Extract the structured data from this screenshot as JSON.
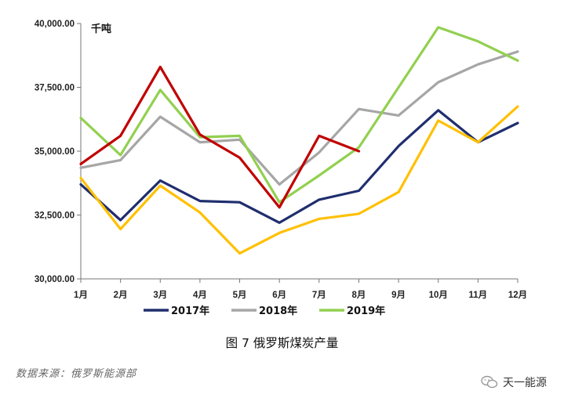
{
  "chart_data": {
    "type": "line",
    "title": "图 7  俄罗斯煤炭产量",
    "unit_label": "千吨",
    "categories": [
      "1月",
      "2月",
      "3月",
      "4月",
      "5月",
      "6月",
      "7月",
      "8月",
      "9月",
      "10月",
      "11月",
      "12月"
    ],
    "y_ticks": [
      "30,000.00",
      "32,500.00",
      "35,000.00",
      "37,500.00",
      "40,000.00"
    ],
    "ylim": [
      30000,
      40000
    ],
    "series": [
      {
        "name": "2017年",
        "color": "#1f2e6e",
        "in_legend": true,
        "values": [
          33700,
          32300,
          33850,
          33050,
          33000,
          32200,
          33100,
          33450,
          35200,
          36600,
          35350,
          36100
        ]
      },
      {
        "name": "2018年",
        "color": "#a6a6a6",
        "in_legend": true,
        "values": [
          34350,
          34650,
          36350,
          35350,
          35450,
          33700,
          34950,
          36650,
          36400,
          37700,
          38400,
          38900
        ]
      },
      {
        "name": "2019年",
        "color": "#92d050",
        "in_legend": true,
        "values": [
          36300,
          34850,
          37400,
          35550,
          35600,
          33000,
          34050,
          35150,
          37500,
          39850,
          39300,
          38550
        ]
      },
      {
        "name": "",
        "color": "#ffc000",
        "in_legend": false,
        "values": [
          33950,
          31950,
          33650,
          32600,
          31000,
          31800,
          32350,
          32550,
          33400,
          36200,
          35350,
          36750
        ]
      },
      {
        "name": "",
        "color": "#c00000",
        "in_legend": false,
        "values": [
          34500,
          35600,
          38300,
          35650,
          34750,
          32800,
          35600,
          35000,
          null,
          null,
          null,
          null
        ]
      }
    ]
  },
  "footer": {
    "source": "数据来源：俄罗斯能源部",
    "brand": "天一能源"
  },
  "colors": {
    "brand_icon": "#999999"
  }
}
